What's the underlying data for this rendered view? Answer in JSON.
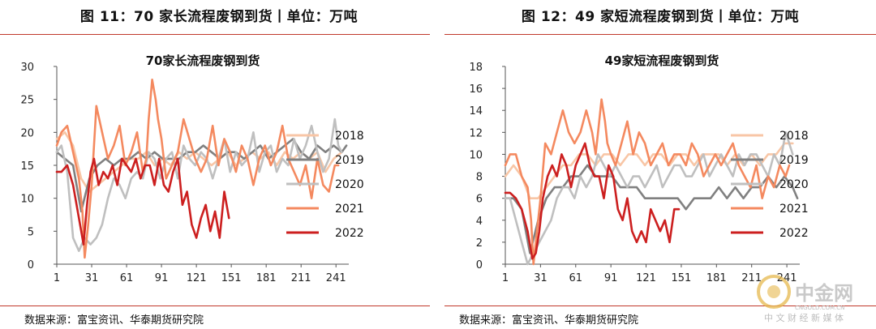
{
  "figures": [
    {
      "figure_title": "图 11：70 家长流程废钢到货丨单位：万吨",
      "source": "数据来源：富宝资讯、华泰期货研究院"
    },
    {
      "figure_title": "图 12：49 家短流程废钢到货丨单位：万吨",
      "source": "数据来源：富宝资讯、华泰期货研究院"
    }
  ],
  "watermark": {
    "logo_text": "中金网",
    "sub_text": "CNGOLD.COM.CN",
    "tagline": "中 文 财 经 新 媒 体"
  },
  "colors": {
    "2018": "#f8c6a6",
    "2019": "#808080",
    "2020": "#bfbfbf",
    "2021": "#f4895f",
    "2022": "#cc1f1f",
    "rule": "#c0392b"
  },
  "chart_data": [
    {
      "type": "line",
      "title": "70家长流程废钢到货",
      "xlabel": "",
      "ylabel": "",
      "xlim": [
        1,
        252
      ],
      "ylim": [
        0,
        30
      ],
      "xticks": [
        1,
        31,
        61,
        91,
        121,
        151,
        181,
        211,
        241
      ],
      "yticks": [
        0,
        5,
        10,
        15,
        20,
        25,
        30
      ],
      "grid": false,
      "legend_position": "right",
      "series": [
        {
          "name": "2018",
          "color": "#f8c6a6",
          "x": [
            1,
            8,
            15,
            22,
            29,
            36,
            43,
            50,
            57,
            64,
            71,
            78,
            85,
            92,
            99,
            106,
            113,
            120,
            127,
            134,
            141,
            148,
            155,
            162,
            169,
            176,
            183,
            190,
            197,
            204,
            211,
            218,
            225,
            232,
            239,
            246
          ],
          "y": [
            19,
            20,
            18,
            13,
            11,
            12,
            13,
            14,
            15,
            16,
            16,
            17,
            15,
            16,
            15,
            17,
            16,
            17,
            16,
            15,
            16,
            17,
            15,
            16,
            17,
            16,
            17,
            15,
            17,
            16,
            17,
            16,
            17,
            14,
            16,
            17
          ]
        },
        {
          "name": "2019",
          "color": "#808080",
          "x": [
            1,
            8,
            15,
            22,
            29,
            36,
            43,
            50,
            57,
            64,
            71,
            78,
            85,
            92,
            99,
            106,
            113,
            120,
            127,
            134,
            141,
            148,
            155,
            162,
            169,
            176,
            183,
            190,
            197,
            204,
            211,
            218,
            225,
            232,
            239,
            246,
            250
          ],
          "y": [
            17,
            16,
            15,
            8,
            13,
            15,
            16,
            15,
            16,
            16,
            17,
            16,
            17,
            16,
            16,
            16,
            17,
            17,
            18,
            17,
            16,
            17,
            17,
            16,
            17,
            18,
            16,
            17,
            18,
            19,
            17,
            16,
            18,
            17,
            18,
            17,
            18
          ]
        },
        {
          "name": "2020",
          "color": "#bfbfbf",
          "x": [
            1,
            5,
            10,
            15,
            20,
            25,
            30,
            35,
            40,
            45,
            50,
            55,
            60,
            65,
            70,
            75,
            80,
            85,
            90,
            95,
            100,
            105,
            110,
            115,
            120,
            125,
            130,
            135,
            140,
            145,
            150,
            155,
            160,
            165,
            170,
            175,
            180,
            185,
            190,
            195,
            200,
            205,
            210,
            215,
            220,
            225,
            230,
            235,
            240,
            243,
            246
          ],
          "y": [
            17,
            18,
            14,
            4,
            2,
            4,
            3,
            4,
            6,
            10,
            13,
            12,
            10,
            13,
            14,
            13,
            17,
            16,
            13,
            16,
            17,
            13,
            18,
            16,
            15,
            17,
            16,
            13,
            16,
            19,
            14,
            17,
            15,
            16,
            20,
            14,
            17,
            18,
            14,
            16,
            15,
            19,
            16,
            18,
            21,
            17,
            14,
            16,
            22,
            18,
            17
          ]
        },
        {
          "name": "2021",
          "color": "#f4895f",
          "x": [
            1,
            5,
            10,
            15,
            20,
            23,
            25,
            28,
            31,
            35,
            40,
            45,
            50,
            55,
            60,
            65,
            70,
            75,
            78,
            80,
            83,
            86,
            88,
            91,
            95,
            100,
            105,
            110,
            115,
            120,
            125,
            130,
            135,
            140,
            145,
            150,
            155,
            160,
            165,
            170,
            175,
            180,
            185,
            190,
            195,
            200,
            205,
            210,
            215,
            220,
            225,
            230,
            235,
            240,
            243
          ],
          "y": [
            18,
            20,
            21,
            17,
            13,
            8,
            1,
            6,
            12,
            24,
            20,
            16,
            18,
            21,
            15,
            17,
            20,
            14,
            16,
            22,
            28,
            25,
            22,
            19,
            13,
            15,
            17,
            22,
            19,
            16,
            14,
            16,
            21,
            15,
            19,
            17,
            14,
            18,
            16,
            12,
            16,
            18,
            15,
            17,
            21,
            16,
            14,
            12,
            15,
            10,
            16,
            12,
            11,
            15,
            15
          ]
        },
        {
          "name": "2022",
          "color": "#cc1f1f",
          "x": [
            1,
            5,
            10,
            15,
            20,
            24,
            27,
            30,
            33,
            37,
            41,
            45,
            49,
            53,
            57,
            61,
            65,
            69,
            73,
            77,
            81,
            85,
            89,
            93,
            97,
            101,
            105,
            109,
            113,
            117,
            121,
            125,
            129,
            133,
            137,
            141,
            145,
            149
          ],
          "y": [
            14,
            14,
            15,
            12,
            7,
            3,
            9,
            14,
            16,
            12,
            14,
            13,
            15,
            12,
            16,
            15,
            14,
            16,
            13,
            15,
            15,
            12,
            16,
            12,
            11,
            14,
            16,
            9,
            11,
            6,
            4,
            7,
            9,
            5,
            8,
            4,
            11,
            7
          ]
        }
      ]
    },
    {
      "type": "line",
      "title": "49家短流程废钢到货",
      "xlabel": "",
      "ylabel": "",
      "xlim": [
        1,
        252
      ],
      "ylim": [
        0,
        18
      ],
      "xticks": [
        1,
        31,
        61,
        91,
        121,
        151,
        181,
        211,
        241
      ],
      "yticks": [
        0,
        2,
        4,
        6,
        8,
        10,
        12,
        14,
        16,
        18
      ],
      "grid": false,
      "legend_position": "right",
      "series": [
        {
          "name": "2018",
          "color": "#f8c6a6",
          "x": [
            1,
            8,
            15,
            22,
            29,
            36,
            43,
            50,
            57,
            64,
            71,
            78,
            85,
            92,
            99,
            106,
            113,
            120,
            127,
            134,
            141,
            148,
            155,
            162,
            169,
            176,
            183,
            190,
            197,
            204,
            211,
            218,
            225,
            232,
            239,
            246
          ],
          "y": [
            8,
            9,
            8,
            6,
            6,
            7,
            8,
            9,
            9,
            10,
            10,
            9,
            10,
            10,
            9,
            10,
            10,
            9,
            10,
            10,
            9,
            10,
            10,
            9,
            10,
            10,
            10,
            9,
            10,
            9,
            10,
            9,
            10,
            10,
            11,
            11
          ]
        },
        {
          "name": "2019",
          "color": "#808080",
          "x": [
            1,
            8,
            15,
            22,
            29,
            36,
            43,
            50,
            57,
            64,
            71,
            78,
            85,
            92,
            99,
            106,
            113,
            120,
            127,
            134,
            141,
            148,
            155,
            162,
            169,
            176,
            183,
            190,
            197,
            204,
            211,
            218,
            225,
            232,
            239,
            246,
            250
          ],
          "y": [
            6,
            6,
            5,
            1,
            4,
            6,
            7,
            7,
            8,
            8,
            9,
            8,
            8,
            8,
            7,
            7,
            7,
            6,
            6,
            6,
            6,
            6,
            5,
            6,
            6,
            6,
            7,
            6,
            7,
            6,
            7,
            7,
            8,
            7,
            8,
            7,
            6
          ]
        },
        {
          "name": "2020",
          "color": "#bfbfbf",
          "x": [
            1,
            5,
            10,
            15,
            20,
            25,
            30,
            35,
            40,
            45,
            50,
            55,
            60,
            65,
            70,
            75,
            80,
            85,
            90,
            95,
            100,
            105,
            110,
            115,
            120,
            125,
            130,
            135,
            140,
            145,
            150,
            155,
            160,
            165,
            170,
            175,
            180,
            185,
            190,
            195,
            200,
            205,
            210,
            215,
            220,
            225,
            230,
            235,
            240,
            243,
            246
          ],
          "y": [
            6,
            6,
            4,
            2,
            0,
            1,
            2,
            3,
            4,
            6,
            7,
            7,
            6,
            8,
            7,
            8,
            10,
            9,
            8,
            9,
            8,
            7,
            8,
            8,
            7,
            8,
            9,
            7,
            8,
            9,
            9,
            8,
            8,
            9,
            10,
            8,
            9,
            10,
            9,
            8,
            10,
            9,
            10,
            10,
            9,
            8,
            10,
            9,
            12,
            11,
            10
          ]
        },
        {
          "name": "2021",
          "color": "#f4895f",
          "x": [
            1,
            5,
            10,
            15,
            20,
            23,
            25,
            28,
            31,
            35,
            40,
            45,
            50,
            55,
            60,
            65,
            70,
            75,
            78,
            80,
            83,
            86,
            88,
            91,
            95,
            100,
            105,
            110,
            115,
            120,
            125,
            130,
            135,
            140,
            145,
            150,
            155,
            160,
            165,
            170,
            175,
            180,
            185,
            190,
            195,
            200,
            205,
            210,
            215,
            220,
            225,
            230,
            235,
            240,
            243
          ],
          "y": [
            9,
            10,
            10,
            8,
            7,
            4,
            0,
            3,
            6,
            11,
            10,
            12,
            14,
            12,
            11,
            12,
            14,
            12,
            10,
            12,
            15,
            13,
            11,
            10,
            9,
            11,
            13,
            10,
            12,
            11,
            9,
            10,
            11,
            9,
            10,
            10,
            9,
            11,
            10,
            8,
            9,
            10,
            9,
            10,
            11,
            9,
            8,
            7,
            9,
            6,
            8,
            7,
            9,
            8,
            9
          ]
        },
        {
          "name": "2022",
          "color": "#cc1f1f",
          "x": [
            1,
            5,
            10,
            15,
            20,
            24,
            27,
            30,
            33,
            37,
            41,
            45,
            49,
            53,
            57,
            61,
            65,
            69,
            73,
            77,
            81,
            85,
            89,
            93,
            97,
            101,
            105,
            109,
            113,
            117,
            121,
            125,
            129,
            133,
            137,
            141,
            145,
            149
          ],
          "y": [
            6.5,
            6.5,
            6,
            5,
            3,
            0.5,
            1,
            3,
            6,
            8,
            9,
            8,
            10,
            9,
            7,
            9,
            10,
            11,
            9,
            8,
            8,
            6,
            9,
            8,
            5,
            4,
            6,
            3,
            2,
            3,
            2,
            5,
            4,
            3,
            4,
            2,
            5,
            5
          ]
        }
      ]
    }
  ]
}
